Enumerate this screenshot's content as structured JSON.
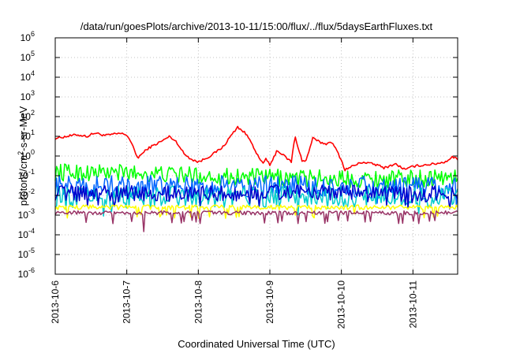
{
  "chart_data": {
    "type": "line",
    "title": "/data/run/goesPlots/archive/2013-10-11/15:00/flux/../flux/5daysEarthFluxes.txt",
    "xlabel": "Coordinated Universal Time (UTC)",
    "ylabel": {
      "base": "protons/cm",
      "sup": "2",
      "rest": "-s-sr-MeV"
    },
    "y_scale": "log",
    "ylim_exponents": [
      -6,
      6
    ],
    "y_tick_base": "10",
    "y_tick_exponents": [
      "-6",
      "-5",
      "-4",
      "-3",
      "-2",
      "-1",
      "0",
      "1",
      "2",
      "3",
      "4",
      "5",
      "6"
    ],
    "xlim": [
      "2013-10-06",
      "2013-10-11 15:00"
    ],
    "x_ticks": [
      "2013-10-6",
      "2013-10-7",
      "2013-10-8",
      "2013-10-9",
      "2013-10-10",
      "2013-10-11"
    ],
    "grid": true,
    "series_style": "noisy lines, unlabeled",
    "series": [
      {
        "color": "#ff0000",
        "x_days": [
          0,
          0.3,
          0.45,
          0.55,
          0.7,
          0.9,
          1.0,
          1.05,
          1.15,
          1.3,
          1.5,
          1.6,
          1.7,
          1.8,
          1.9,
          2.0,
          2.05,
          2.2,
          2.35,
          2.45,
          2.55,
          2.65,
          2.75,
          2.8,
          2.85,
          2.9,
          2.95,
          3.0,
          3.1,
          3.2,
          3.3,
          3.35,
          3.45,
          3.5,
          3.6,
          3.7,
          3.8,
          3.85,
          3.95,
          4.0,
          4.05,
          4.15,
          4.3,
          4.5,
          4.6,
          4.75,
          4.9,
          5.0,
          5.15,
          5.3,
          5.45,
          5.55,
          5.625
        ],
        "values": [
          8,
          12,
          10,
          15,
          11,
          14,
          12,
          6,
          0.8,
          2.5,
          6,
          10,
          5,
          1.3,
          0.7,
          0.5,
          0.6,
          1.2,
          3,
          10,
          30,
          15,
          5,
          1.5,
          0.8,
          0.4,
          0.8,
          0.3,
          2,
          1,
          0.5,
          10,
          0.6,
          0.5,
          8,
          5,
          4,
          6,
          1.5,
          0.6,
          0.2,
          0.3,
          0.5,
          0.35,
          0.25,
          0.4,
          0.2,
          0.3,
          0.35,
          0.4,
          0.5,
          0.9,
          0.7
        ]
      },
      {
        "color": "#00ff00",
        "x_days": [
          0,
          1.0,
          2.0,
          3.0,
          4.0,
          5.0,
          5.625
        ],
        "values": [
          0.15,
          0.14,
          0.1,
          0.08,
          0.07,
          0.07,
          0.09
        ]
      },
      {
        "color": "#0066ff",
        "x_days": [
          0,
          1.0,
          2.0,
          3.0,
          4.0,
          5.0,
          5.625
        ],
        "values": [
          0.03,
          0.03,
          0.028,
          0.03,
          0.028,
          0.025,
          0.028
        ]
      },
      {
        "color": "#00cccc",
        "x_days": [
          0,
          1.0,
          2.0,
          3.0,
          4.0,
          5.0,
          5.625
        ],
        "values": [
          0.008,
          0.008,
          0.009,
          0.008,
          0.009,
          0.008,
          0.009
        ]
      },
      {
        "color": "#0000cc",
        "x_days": [
          0,
          1.0,
          2.0,
          3.0,
          4.0,
          5.0,
          5.625
        ],
        "values": [
          0.013,
          0.013,
          0.012,
          0.014,
          0.013,
          0.012,
          0.013
        ]
      },
      {
        "color": "#ffff00",
        "x_days": [
          0,
          1.0,
          2.0,
          3.0,
          4.0,
          5.0,
          5.625
        ],
        "values": [
          0.0025,
          0.0025,
          0.0025,
          0.0025,
          0.0025,
          0.0025,
          0.0025
        ]
      },
      {
        "color": "#993366",
        "x_days": [
          0,
          1.0,
          2.0,
          3.0,
          4.0,
          5.0,
          5.625
        ],
        "values": [
          0.0013,
          0.0013,
          0.0013,
          0.0013,
          0.0013,
          0.0013,
          0.0013
        ]
      }
    ]
  }
}
